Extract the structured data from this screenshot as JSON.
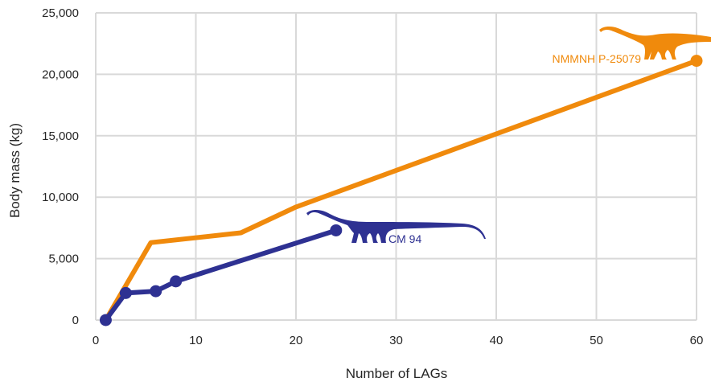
{
  "chart_data": {
    "type": "line",
    "title": "",
    "xlabel": "Number of LAGs",
    "ylabel": "Body mass (kg)",
    "xlim": [
      0,
      60
    ],
    "ylim": [
      0,
      25000
    ],
    "grid": true,
    "x_ticks": [
      0,
      10,
      20,
      30,
      40,
      50,
      60
    ],
    "x_tick_labels": [
      "0",
      "10",
      "20",
      "30",
      "40",
      "50",
      "60"
    ],
    "y_ticks": [
      0,
      5000,
      10000,
      15000,
      20000,
      25000
    ],
    "y_tick_labels": [
      "0",
      "5,000",
      "10,000",
      "15,000",
      "20,000",
      "25,000"
    ],
    "series": [
      {
        "name": "NMMNH P-25079",
        "color": "#f08a0c",
        "markers": "end",
        "points": [
          {
            "x": 1,
            "y": 0
          },
          {
            "x": 5.5,
            "y": 6300
          },
          {
            "x": 14.5,
            "y": 7100
          },
          {
            "x": 20,
            "y": 9200
          },
          {
            "x": 60,
            "y": 21100
          }
        ]
      },
      {
        "name": "CM 94",
        "color": "#2e3192",
        "markers": "all",
        "points": [
          {
            "x": 1,
            "y": 0
          },
          {
            "x": 3,
            "y": 2200
          },
          {
            "x": 6,
            "y": 2350
          },
          {
            "x": 8,
            "y": 3150
          },
          {
            "x": 24,
            "y": 7300
          }
        ]
      }
    ],
    "annotations": [
      {
        "text": "NMMNH P-25079",
        "series": 0,
        "icon": "sauropod-silhouette-icon"
      },
      {
        "text": "CM 94",
        "series": 1,
        "icon": "sauropod-silhouette-icon"
      }
    ]
  }
}
